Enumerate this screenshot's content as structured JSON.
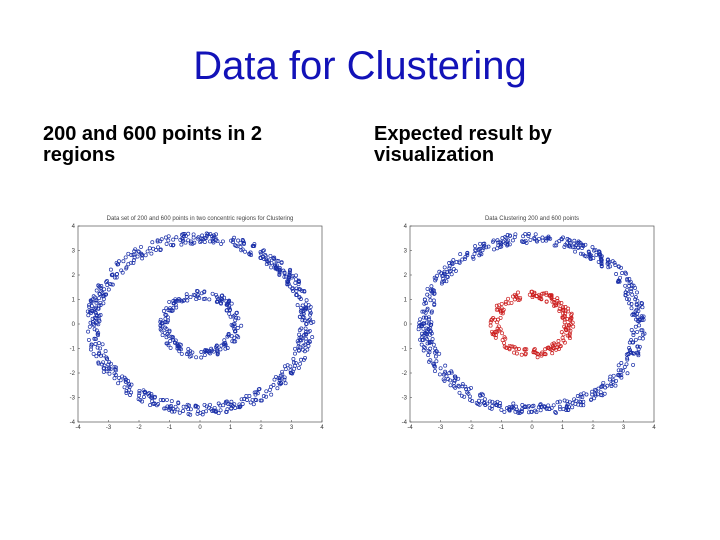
{
  "slide": {
    "title": "Data for Clustering",
    "caption_left": "200 and 600 points in 2\nregions",
    "caption_right": "Expected result by\nvisualization"
  },
  "plots": [
    {
      "header": "Data set of 200 and 600 points in two concentric regions for Clustering",
      "x_ticks": [
        "-4",
        "-3",
        "-2",
        "-1",
        "0",
        "1",
        "2",
        "3",
        "4"
      ],
      "y_ticks": [
        "4",
        "3",
        "2",
        "1",
        "0",
        "-1",
        "-2",
        "-3",
        "-4"
      ],
      "inner_ring_color": "#1a2fa8",
      "outer_ring_color": "#1a2fa8"
    },
    {
      "header": "Data Clustering 200 and 600 points",
      "x_ticks": [
        "-4",
        "-3",
        "-2",
        "-1",
        "0",
        "1",
        "2",
        "3",
        "4"
      ],
      "y_ticks": [
        "4",
        "3",
        "2",
        "1",
        "0",
        "-1",
        "-2",
        "-3",
        "-4"
      ],
      "inner_ring_color": "#cc1f1f",
      "outer_ring_color": "#1a2fa8"
    }
  ],
  "colors": {
    "title": "#1212b8"
  }
}
